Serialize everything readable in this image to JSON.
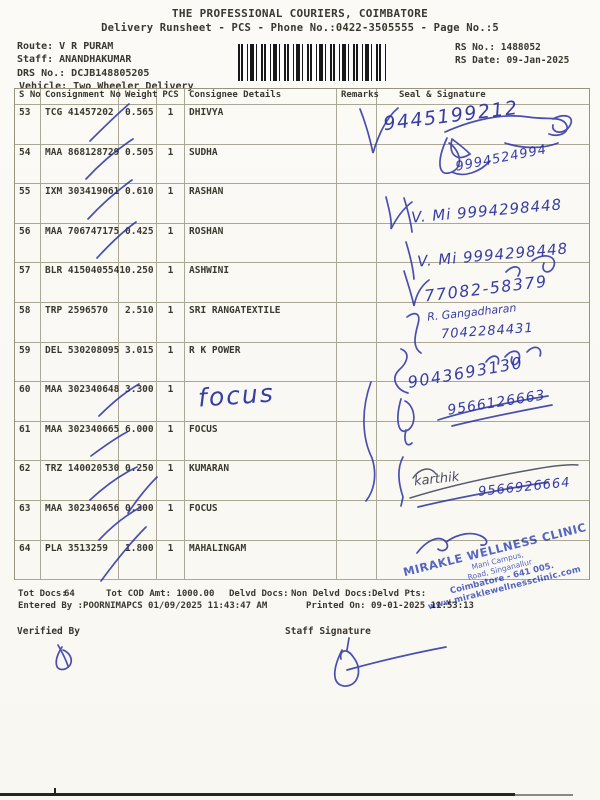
{
  "page": {
    "background": "#fbfaf6",
    "ink_blue": "#2b31a6",
    "stamp_blue": "#3d54c4",
    "print_color": "#3b382f"
  },
  "header": {
    "title": "THE PROFESSIONAL COURIERS, COIMBATORE",
    "subtitle": "Delivery Runsheet - PCS - Phone No.:0422-3505555 - Page No.:5",
    "route": "Route: V R PURAM",
    "staff": "Staff: ANANDHAKUMAR",
    "drs_no": "DRS No.: DCJB148805205",
    "vehicle": "Vehicle: Two Wheeler Delivery",
    "rs_no": "RS No.: 1488052",
    "rs_date": "RS Date: 09-Jan-2025",
    "barcode_icon": "barcode"
  },
  "table": {
    "headers": [
      "S No",
      "Consignment No",
      "Weight",
      "PCS",
      "Consignee Details",
      "Remarks",
      "Seal & Signature"
    ],
    "rows": [
      {
        "sno": "53",
        "consignment": "TCG 41457202",
        "weight": "0.565",
        "pcs": "1",
        "consignee": "DHIVYA"
      },
      {
        "sno": "54",
        "consignment": "MAA 868128729",
        "weight": "0.505",
        "pcs": "1",
        "consignee": "SUDHA"
      },
      {
        "sno": "55",
        "consignment": "IXM 303419061",
        "weight": "0.610",
        "pcs": "1",
        "consignee": "RASHAN"
      },
      {
        "sno": "56",
        "consignment": "MAA 706747175",
        "weight": "0.425",
        "pcs": "1",
        "consignee": "ROSHAN"
      },
      {
        "sno": "57",
        "consignment": "BLR 4150405541",
        "weight": "0.250",
        "pcs": "1",
        "consignee": "ASHWINI"
      },
      {
        "sno": "58",
        "consignment": "TRP 2596570",
        "weight": "2.510",
        "pcs": "1",
        "consignee": "SRI RANGATEXTILE"
      },
      {
        "sno": "59",
        "consignment": "DEL 530208095",
        "weight": "3.015",
        "pcs": "1",
        "consignee": "R K POWER"
      },
      {
        "sno": "60",
        "consignment": "MAA 302340648",
        "weight": "3.300",
        "pcs": "1",
        "consignee": ""
      },
      {
        "sno": "61",
        "consignment": "MAA 302340665",
        "weight": "6.000",
        "pcs": "1",
        "consignee": "FOCUS"
      },
      {
        "sno": "62",
        "consignment": "TRZ 140020530",
        "weight": "0.250",
        "pcs": "1",
        "consignee": "KUMARAN"
      },
      {
        "sno": "63",
        "consignment": "MAA 302340656",
        "weight": "0.300",
        "pcs": "1",
        "consignee": "FOCUS"
      },
      {
        "sno": "64",
        "consignment": "PLA 3513259",
        "weight": "1.800",
        "pcs": "1",
        "consignee": "MAHALINGAM"
      }
    ]
  },
  "handwriting": {
    "focus_note": "focus",
    "r53_phone": "9445199212",
    "r54_phone": "9994524994",
    "r55_sig": "V. Mi 9994298448",
    "r56_sig": "V. Mi 9994298448",
    "r57_phone": "77082-58379",
    "r58_name": "R. Gangadharan",
    "r58_phone": "7042284431",
    "r59_phone": "9043693130",
    "r60_phone": "9566126663",
    "r62_name": "karthik",
    "r62_phone": "9566926664"
  },
  "stamp": {
    "line1": "MIRAKLE WELLNESS CLINIC",
    "line2": "Mani Campus,",
    "line3": "Road, Singanallur",
    "line4": "Coimbatore - 641 005.",
    "line5": "www.miraklewellnessclinic.com"
  },
  "footer": {
    "tot_docs_label": "Tot Docs:",
    "tot_docs_value": "64",
    "tot_cod": "Tot COD Amt: 1000.00",
    "delvd_docs": "Delvd Docs:",
    "non_delvd_docs": "Non Delvd Docs:",
    "delvd_pts": "Delvd Pts:",
    "entered_by": "Entered By :POORNIMAPCS 01/09/2025 11:43:47 AM",
    "printed_on": "Printed On: 09-01-2025 11:53:13",
    "verified_by": "Verified By",
    "staff_signature": "Staff Signature"
  }
}
